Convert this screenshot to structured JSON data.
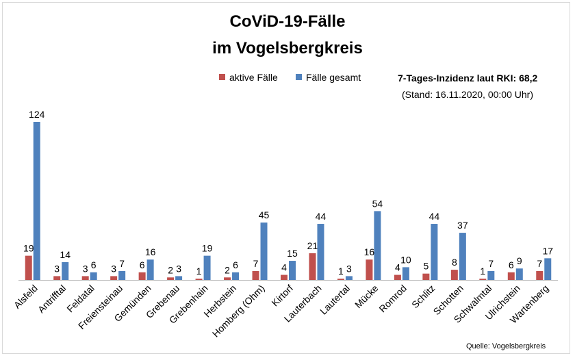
{
  "title_line1": "CoViD-19-Fälle",
  "title_line2": "im Vogelsbergkreis",
  "legend": {
    "active_label": "aktive Fälle",
    "total_label": "Fälle gesamt"
  },
  "incidence": "7-Tages-Inzidenz laut RKI: 68,2",
  "stand": "(Stand: 16.11.2020, 00:00 Uhr)",
  "source": "Quelle: Vogelsbergkreis",
  "colors": {
    "active": "#c0504d",
    "total": "#4f81bd"
  },
  "chart_data": {
    "type": "bar",
    "categories": [
      "Alsfeld",
      "Antrifftal",
      "Feldatal",
      "Freiensteinau",
      "Gemünden",
      "Grebenau",
      "Grebenhain",
      "Herbstein",
      "Homberg (Ohm)",
      "Kirtorf",
      "Lauterbach",
      "Lautertal",
      "Mücke",
      "Romrod",
      "Schlitz",
      "Schotten",
      "Schwalmtal",
      "Ulrichstein",
      "Wartenberg"
    ],
    "series": [
      {
        "name": "aktive Fälle",
        "values": [
          19,
          3,
          3,
          3,
          6,
          2,
          1,
          2,
          7,
          4,
          21,
          1,
          16,
          4,
          5,
          8,
          1,
          6,
          7
        ]
      },
      {
        "name": "Fälle gesamt",
        "values": [
          124,
          14,
          6,
          7,
          16,
          3,
          19,
          6,
          45,
          15,
          44,
          3,
          54,
          10,
          44,
          37,
          7,
          9,
          17
        ]
      }
    ],
    "ylim": [
      0,
      124
    ],
    "grid": false,
    "legend_position": "top-center"
  }
}
